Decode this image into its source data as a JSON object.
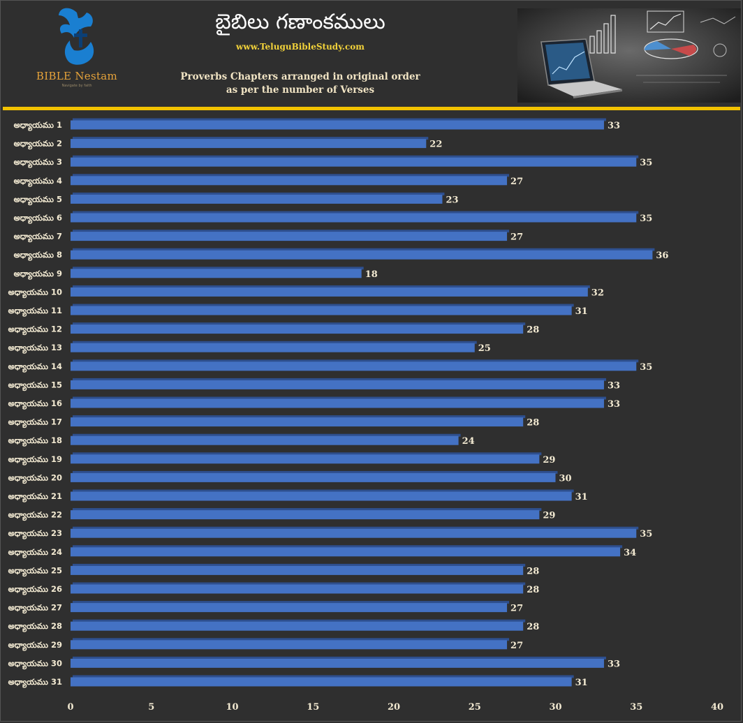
{
  "header": {
    "title": "బైబిలు గణాంకములు",
    "website": "www.TeluguBibleStudy.com",
    "subtitle_line1": "Proverbs Chapters arranged in original order",
    "subtitle_line2": "as per the number of Verses"
  },
  "logo": {
    "name": "BIBLE Nestam",
    "tagline": "Navigate by faith"
  },
  "colors": {
    "background": "#2f2f2f",
    "bar": "#4472c4",
    "bar_top": "#2e4f8e",
    "divider": "#f2c200",
    "label": "#f3ead2",
    "website": "#f2d23a"
  },
  "chart_data": {
    "type": "bar",
    "orientation": "horizontal",
    "title": "Proverbs Chapters arranged in original order as per the number of Verses",
    "xlabel": "",
    "ylabel": "",
    "xlim": [
      0,
      40
    ],
    "xticks": [
      0,
      5,
      10,
      15,
      20,
      25,
      30,
      35,
      40
    ],
    "grid": false,
    "categories": [
      "అధ్యాయము 1",
      "అధ్యాయము 2",
      "అధ్యాయము 3",
      "అధ్యాయము 4",
      "అధ్యాయము 5",
      "అధ్యాయము 6",
      "అధ్యాయము 7",
      "అధ్యాయము 8",
      "అధ్యాయము 9",
      "అధ్యాయము 10",
      "అధ్యాయము 11",
      "అధ్యాయము 12",
      "అధ్యాయము 13",
      "అధ్యాయము 14",
      "అధ్యాయము 15",
      "అధ్యాయము 16",
      "అధ్యాయము 17",
      "అధ్యాయము 18",
      "అధ్యాయము 19",
      "అధ్యాయము 20",
      "అధ్యాయము 21",
      "అధ్యాయము 22",
      "అధ్యాయము 23",
      "అధ్యాయము 24",
      "అధ్యాయము 25",
      "అధ్యాయము 26",
      "అధ్యాయము 27",
      "అధ్యాయము 28",
      "అధ్యాయము 29",
      "అధ్యాయము 30",
      "అధ్యాయము 31"
    ],
    "values": [
      33,
      22,
      35,
      27,
      23,
      35,
      27,
      36,
      18,
      32,
      31,
      28,
      25,
      35,
      33,
      33,
      28,
      24,
      29,
      30,
      31,
      29,
      35,
      34,
      28,
      28,
      27,
      28,
      27,
      33,
      31
    ]
  }
}
